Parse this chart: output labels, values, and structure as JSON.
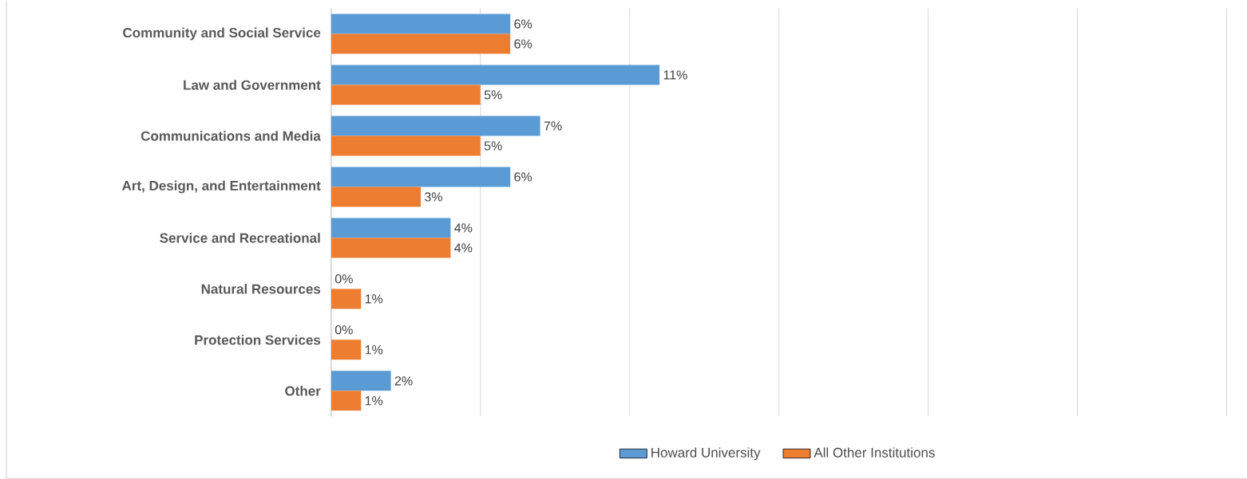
{
  "chart_data": {
    "type": "bar",
    "orientation": "horizontal",
    "categories": [
      "Community and Social Service",
      "Law and Government",
      "Communications and Media",
      "Art, Design, and Entertainment",
      "Service and Recreational",
      "Natural Resources",
      "Protection Services",
      "Other"
    ],
    "series": [
      {
        "name": "Howard University",
        "color": "#5b9bd5",
        "values": [
          6,
          11,
          7,
          6,
          4,
          0,
          0,
          2
        ],
        "value_labels": [
          "6%",
          "11%",
          "7%",
          "6%",
          "4%",
          "0%",
          "0%",
          "2%"
        ]
      },
      {
        "name": "All Other Institutions",
        "color": "#ed7d31",
        "values": [
          6,
          5,
          5,
          3,
          4,
          1,
          1,
          1
        ],
        "value_labels": [
          "6%",
          "5%",
          "5%",
          "3%",
          "4%",
          "1%",
          "1%",
          "1%"
        ]
      }
    ],
    "xlim": [
      0,
      30
    ],
    "xticks": [
      {
        "value": 0,
        "label": null
      },
      {
        "value": 5,
        "label": null
      },
      {
        "value": 10,
        "label": null
      },
      {
        "value": 15,
        "label": null
      },
      {
        "value": 20,
        "label": null
      },
      {
        "value": 25,
        "label": null
      },
      {
        "value": 30,
        "label": null
      }
    ],
    "tick_labels": "y",
    "grid": "x",
    "legend": "bottom"
  }
}
